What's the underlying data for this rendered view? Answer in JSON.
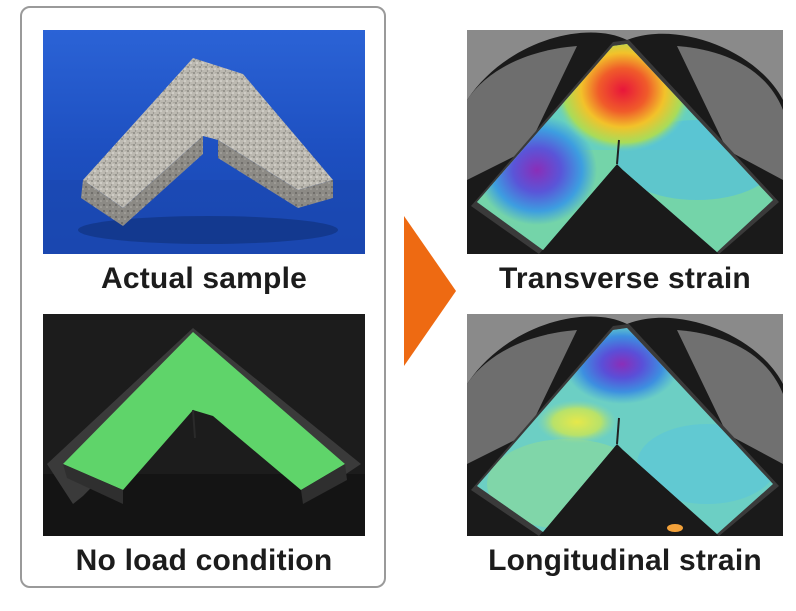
{
  "panels": {
    "actual_sample": {
      "caption": "Actual sample"
    },
    "no_load": {
      "caption": "No load condition"
    },
    "transverse": {
      "caption": "Transverse strain"
    },
    "longitudinal": {
      "caption": "Longitudinal strain"
    }
  },
  "colors": {
    "arrow": "#ee6a12",
    "frame_border": "#9a9a9a",
    "sample_background": "#1e55c8",
    "no_load_overlay": "#5fd46a"
  },
  "icons": {
    "arrow": "right-triangle-arrow-icon"
  }
}
